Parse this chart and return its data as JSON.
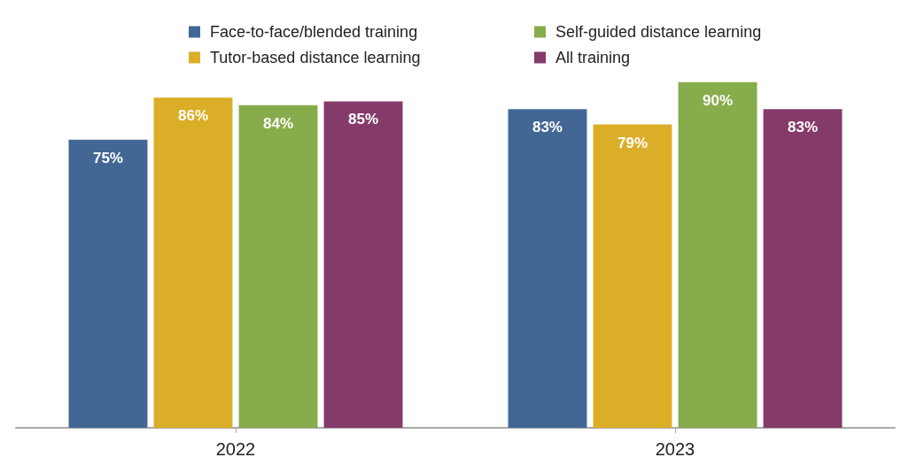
{
  "chart_data": {
    "type": "bar",
    "categories": [
      "2022",
      "2023"
    ],
    "series": [
      {
        "name": "Face-to-face/blended training",
        "color": "#426795",
        "values": [
          75,
          83
        ],
        "value_labels": [
          "75%",
          "83%"
        ]
      },
      {
        "name": "Tutor-based distance learning",
        "color": "#dbae27",
        "values": [
          86,
          79
        ],
        "value_labels": [
          "86%",
          "79%"
        ]
      },
      {
        "name": "Self-guided distance learning",
        "color": "#87ac4b",
        "values": [
          84,
          90
        ],
        "value_labels": [
          "84%",
          "90%"
        ]
      },
      {
        "name": "All training",
        "color": "#843b69",
        "values": [
          85,
          83
        ],
        "value_labels": [
          "85%",
          "83%"
        ]
      }
    ],
    "legend": "top"
  }
}
